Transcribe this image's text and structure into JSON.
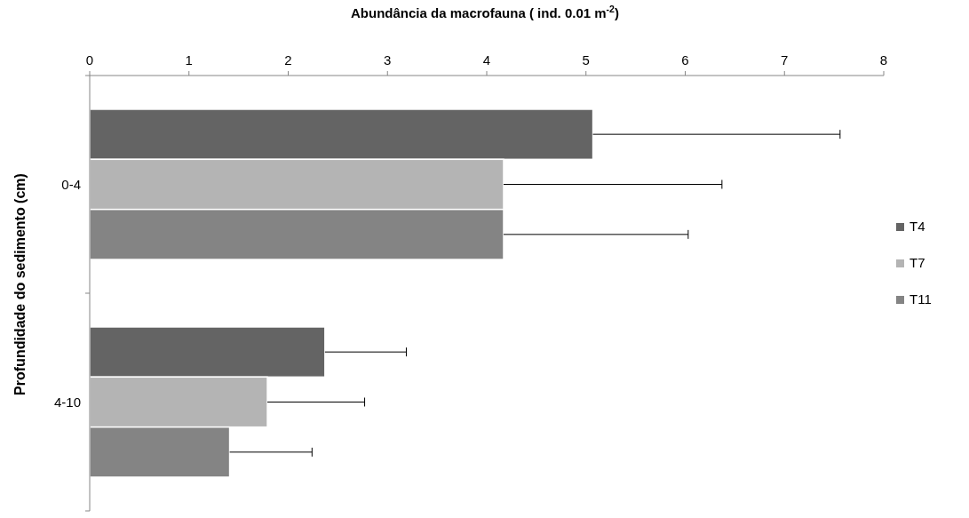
{
  "chart_data": {
    "type": "bar",
    "orientation": "horizontal",
    "xlabel": "Abundância da macrofauna ( ind. 0.01 m$^{-2}$)",
    "ylabel": "Profundidade do sedimento (cm)",
    "categories": [
      "0-4",
      "4-10"
    ],
    "series": [
      {
        "name": "T4",
        "color": "#646464",
        "values": [
          5.07,
          2.37
        ],
        "errors": [
          [
            5.07,
            7.56
          ],
          [
            2.37,
            3.19
          ]
        ]
      },
      {
        "name": "T7",
        "color": "#b4b4b4",
        "values": [
          4.17,
          1.79
        ],
        "errors": [
          [
            4.17,
            6.37
          ],
          [
            1.79,
            2.77
          ]
        ]
      },
      {
        "name": "T11",
        "color": "#848484",
        "values": [
          4.17,
          1.41
        ],
        "errors": [
          [
            4.17,
            6.03
          ],
          [
            1.41,
            2.24
          ]
        ]
      }
    ],
    "xlim": [
      0,
      8
    ],
    "xticks": [
      0,
      1,
      2,
      3,
      4,
      5,
      6,
      7,
      8
    ],
    "grid": false,
    "legend": "right"
  }
}
